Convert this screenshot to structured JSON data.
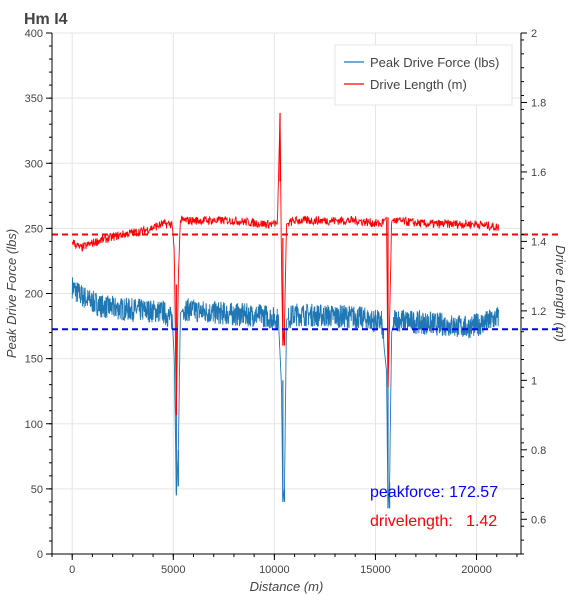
{
  "chart_data": {
    "type": "line",
    "title": "Hm I4",
    "xlabel": "Distance (m)",
    "ylabel": "Peak Drive Force (lbs)",
    "y2label": "Drive Length (m)",
    "xlim": [
      -1000,
      22200
    ],
    "ylim": [
      0,
      400
    ],
    "y2lim": [
      0.5,
      2.0
    ],
    "xticks": [
      0,
      5000,
      10000,
      15000,
      20000
    ],
    "yticks": [
      0,
      50,
      100,
      150,
      200,
      250,
      300,
      350,
      400
    ],
    "y2ticks": [
      0.6,
      0.8,
      1,
      1.2,
      1.4,
      1.6,
      1.8,
      2
    ],
    "grid": true,
    "legend_position": "top-right",
    "series": [
      {
        "name": "Peak Drive Force (lbs)",
        "axis": "left",
        "color": "#1f77b4",
        "x": [
          0,
          300,
          800,
          1500,
          2500,
          3500,
          4500,
          4950,
          5050,
          5150,
          5250,
          5350,
          5500,
          6500,
          8000,
          9500,
          10200,
          10350,
          10420,
          10500,
          10600,
          11000,
          12500,
          14000,
          15300,
          15550,
          15620,
          15700,
          15800,
          15950,
          17000,
          18500,
          19500,
          20500,
          21100
        ],
        "y": [
          205,
          200,
          195,
          190,
          188,
          187,
          186,
          180,
          150,
          45,
          80,
          185,
          188,
          186,
          184,
          183,
          180,
          130,
          40,
          50,
          180,
          184,
          183,
          182,
          178,
          140,
          35,
          55,
          170,
          180,
          178,
          176,
          174,
          178,
          182
        ]
      },
      {
        "name": "Drive Length (m)",
        "axis": "right",
        "color": "#ff0000",
        "x": [
          0,
          400,
          1200,
          2500,
          3500,
          4500,
          4950,
          5050,
          5150,
          5250,
          5350,
          5600,
          6500,
          8000,
          9500,
          10150,
          10280,
          10350,
          10420,
          10500,
          10600,
          11000,
          12500,
          14000,
          15300,
          15550,
          15620,
          15680,
          15800,
          16000,
          17500,
          19000,
          20000,
          21100
        ],
        "y": [
          1.4,
          1.38,
          1.4,
          1.42,
          1.43,
          1.45,
          1.45,
          1.37,
          0.9,
          1.3,
          1.46,
          1.46,
          1.46,
          1.46,
          1.45,
          1.45,
          1.77,
          1.35,
          1.1,
          1.15,
          1.45,
          1.46,
          1.46,
          1.46,
          1.45,
          1.47,
          0.98,
          1.12,
          1.46,
          1.46,
          1.45,
          1.45,
          1.45,
          1.44
        ]
      }
    ],
    "reference_lines": [
      {
        "axis": "left",
        "value": 172.57,
        "color": "#0000ff"
      },
      {
        "axis": "right",
        "value": 1.42,
        "color": "#ff0000"
      }
    ],
    "annotations": [
      {
        "text": "peakforce: 172.57",
        "color": "#0000ff"
      },
      {
        "text": "drivelength:   1.42",
        "color": "#ff0000"
      }
    ]
  }
}
